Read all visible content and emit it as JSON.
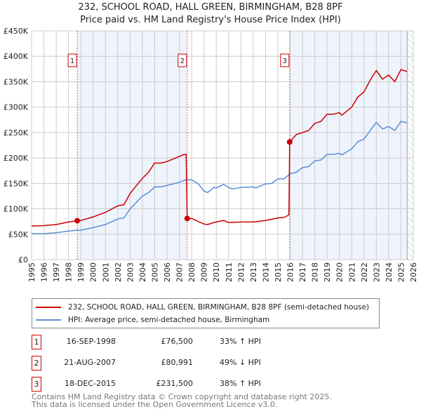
{
  "chart_data": {
    "type": "line",
    "title": "232, SCHOOL ROAD, HALL GREEN, BIRMINGHAM, B28 8PF",
    "subtitle": "Price paid vs. HM Land Registry's House Price Index (HPI)",
    "xlim": [
      1995,
      2026
    ],
    "ylim": [
      0,
      450000
    ],
    "x_ticks": [
      "1995",
      "1996",
      "1997",
      "1998",
      "1999",
      "2000",
      "2001",
      "2002",
      "2003",
      "2004",
      "2005",
      "2006",
      "2007",
      "2008",
      "2009",
      "2010",
      "2011",
      "2012",
      "2013",
      "2014",
      "2015",
      "2016",
      "2017",
      "2018",
      "2019",
      "2020",
      "2021",
      "2022",
      "2023",
      "2024",
      "2025",
      "2026"
    ],
    "y_ticks": [
      {
        "v": 0,
        "label": "£0"
      },
      {
        "v": 50000,
        "label": "£50K"
      },
      {
        "v": 100000,
        "label": "£100K"
      },
      {
        "v": 150000,
        "label": "£150K"
      },
      {
        "v": 200000,
        "label": "£200K"
      },
      {
        "v": 250000,
        "label": "£250K"
      },
      {
        "v": 300000,
        "label": "£300K"
      },
      {
        "v": 350000,
        "label": "£350K"
      },
      {
        "v": 400000,
        "label": "£400K"
      },
      {
        "v": 450000,
        "label": "£450K"
      }
    ],
    "grid": true,
    "series": [
      {
        "name": "232, SCHOOL ROAD, HALL GREEN, BIRMINGHAM, B28 8PF (semi-detached house)",
        "color": "#cc0000",
        "x": [
          1995,
          1996,
          1997,
          1998,
          1998.71,
          1999,
          2000,
          2001,
          2002,
          2002.5,
          2003,
          2004,
          2004.5,
          2005,
          2005.5,
          2006,
          2007,
          2007.4,
          2007.55,
          2007.64,
          2008,
          2009,
          2009.3,
          2009.8,
          2010,
          2010.6,
          2011,
          2012,
          2013,
          2014,
          2015,
          2015.5,
          2015.9,
          2015.96,
          2016.5,
          2017,
          2017.5,
          2018,
          2018.5,
          2019,
          2019.5,
          2020,
          2020.2,
          2021,
          2021.5,
          2022,
          2022.5,
          2023,
          2023.5,
          2024,
          2024.5,
          2025,
          2025.5
        ],
        "y": [
          66000,
          67000,
          69000,
          74000,
          76500,
          77000,
          84000,
          93000,
          106000,
          108000,
          130000,
          160000,
          172000,
          190000,
          190000,
          193000,
          203000,
          207000,
          207000,
          80991,
          81000,
          70000,
          69000,
          73000,
          74000,
          77000,
          73000,
          74000,
          74000,
          77000,
          82000,
          83000,
          88000,
          231500,
          246000,
          250000,
          254000,
          268000,
          272000,
          286000,
          286000,
          289000,
          284000,
          300000,
          320000,
          330000,
          353000,
          372000,
          355000,
          363000,
          350000,
          374000,
          370000
        ]
      },
      {
        "name": "HPI: Average price, semi-detached house, Birmingham",
        "color": "#5b8fd4",
        "x": [
          1995,
          1996,
          1997,
          1998,
          1998.7,
          1999,
          2000,
          2001,
          2002,
          2002.5,
          2003,
          2004,
          2004.5,
          2005,
          2005.5,
          2006,
          2007,
          2007.5,
          2008,
          2008.5,
          2009,
          2009.3,
          2009.8,
          2010,
          2010.6,
          2011,
          2011.3,
          2012,
          2013,
          2013.2,
          2014,
          2014.5,
          2015,
          2015.5,
          2016,
          2016.5,
          2017,
          2017.5,
          2018,
          2018.5,
          2019,
          2019.5,
          2020,
          2020.2,
          2021,
          2021.5,
          2022,
          2022.5,
          2023,
          2023.5,
          2024,
          2024.5,
          2025,
          2025.5
        ],
        "y": [
          51000,
          51000,
          53000,
          56000,
          58000,
          58000,
          63000,
          69000,
          80000,
          82000,
          100000,
          125000,
          132000,
          143000,
          143000,
          146000,
          152000,
          157000,
          157000,
          150000,
          135000,
          132000,
          142000,
          141000,
          148000,
          142000,
          139000,
          142000,
          143000,
          141000,
          149000,
          150000,
          159000,
          159000,
          169000,
          172000,
          181000,
          183000,
          194000,
          196000,
          207000,
          207000,
          209000,
          206000,
          218000,
          232000,
          237000,
          254000,
          270000,
          257000,
          262000,
          254000,
          272000,
          269000
        ]
      }
    ],
    "sales": [
      {
        "n": "1",
        "x": 1998.71,
        "date": "16-SEP-1998",
        "price_value": 76500,
        "price": "£76,500",
        "hpi": "33% ↑ HPI"
      },
      {
        "n": "2",
        "x": 2007.64,
        "date": "21-AUG-2007",
        "price_value": 80991,
        "price": "£80,991",
        "hpi": "49% ↓ HPI"
      },
      {
        "n": "3",
        "x": 2015.96,
        "date": "18-DEC-2015",
        "price_value": 231500,
        "price": "£231,500",
        "hpi": "38% ↑ HPI"
      }
    ],
    "shaded_ranges": [
      [
        1998.71,
        2007.64
      ],
      [
        2015.96,
        2025.5
      ]
    ],
    "hatch_from": 2025.5,
    "legend_position": "below"
  },
  "footer": {
    "line1": "Contains HM Land Registry data © Crown copyright and database right 2025.",
    "line2": "This data is licensed under the Open Government Licence v3.0."
  }
}
